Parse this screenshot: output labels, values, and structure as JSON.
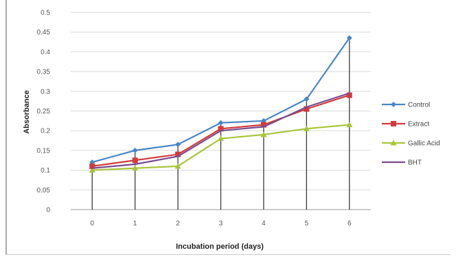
{
  "chart_data": {
    "type": "line",
    "xlabel": "Incubation period (days)",
    "ylabel": "Absorbance",
    "categories": [
      "0",
      "1",
      "2",
      "3",
      "4",
      "5",
      "6"
    ],
    "y_tick_labels": [
      "0",
      "0.05",
      "0.1",
      "0.15",
      "0.2",
      "0.25",
      "0.3",
      "0.35",
      "0.4",
      "0.45",
      "0.5"
    ],
    "ylim": [
      0,
      0.5
    ],
    "grid": true,
    "legend_position": "right",
    "series": [
      {
        "name": "Control",
        "color": "#4a86c5",
        "marker": "diamond",
        "values": [
          0.12,
          0.15,
          0.165,
          0.22,
          0.225,
          0.28,
          0.435
        ]
      },
      {
        "name": "Extract",
        "color": "#d13b3b",
        "marker": "square",
        "values": [
          0.11,
          0.125,
          0.14,
          0.205,
          0.215,
          0.255,
          0.29
        ]
      },
      {
        "name": "Gallic Acid",
        "color": "#a8c43c",
        "marker": "triangle",
        "values": [
          0.1,
          0.105,
          0.11,
          0.18,
          0.19,
          0.205,
          0.215
        ]
      },
      {
        "name": "BHT",
        "color": "#7a4c8e",
        "marker": "none",
        "values": [
          0.105,
          0.115,
          0.135,
          0.2,
          0.21,
          0.26,
          0.295
        ]
      }
    ]
  }
}
